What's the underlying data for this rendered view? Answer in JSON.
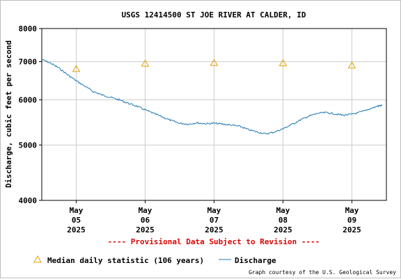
{
  "chart_data": {
    "type": "line",
    "title": "USGS 12414500 ST JOE RIVER AT CALDER, ID",
    "ylabel": "Discharge, cubic feet per second",
    "y_scale": "log",
    "ylim": [
      4000,
      8000
    ],
    "y_ticks": [
      "4000",
      "5000",
      "6000",
      "7000",
      "8000"
    ],
    "xlim": [
      "2025-05-04T12:00",
      "2025-05-09T12:00"
    ],
    "x_ticks": [
      {
        "month": "May",
        "day": "05",
        "year": "2025"
      },
      {
        "month": "May",
        "day": "06",
        "year": "2025"
      },
      {
        "month": "May",
        "day": "07",
        "year": "2025"
      },
      {
        "month": "May",
        "day": "08",
        "year": "2025"
      },
      {
        "month": "May",
        "day": "09",
        "year": "2025"
      }
    ],
    "grid": true,
    "series": [
      {
        "name": "Discharge",
        "color": "#1f77b4",
        "points": [
          [
            "2025-05-04T12:00",
            7060
          ],
          [
            "2025-05-04T15:00",
            6960
          ],
          [
            "2025-05-04T18:00",
            6820
          ],
          [
            "2025-05-04T21:00",
            6640
          ],
          [
            "2025-05-05T00:00",
            6480
          ],
          [
            "2025-05-05T03:00",
            6340
          ],
          [
            "2025-05-05T06:00",
            6200
          ],
          [
            "2025-05-05T09:00",
            6120
          ],
          [
            "2025-05-05T12:00",
            6060
          ],
          [
            "2025-05-05T15:00",
            6000
          ],
          [
            "2025-05-05T18:00",
            5920
          ],
          [
            "2025-05-05T21:00",
            5850
          ],
          [
            "2025-05-06T00:00",
            5760
          ],
          [
            "2025-05-06T03:00",
            5680
          ],
          [
            "2025-05-06T06:00",
            5600
          ],
          [
            "2025-05-06T09:00",
            5520
          ],
          [
            "2025-05-06T12:00",
            5460
          ],
          [
            "2025-05-06T15:00",
            5440
          ],
          [
            "2025-05-06T18:00",
            5470
          ],
          [
            "2025-05-06T21:00",
            5450
          ],
          [
            "2025-05-07T00:00",
            5460
          ],
          [
            "2025-05-07T03:00",
            5440
          ],
          [
            "2025-05-07T06:00",
            5420
          ],
          [
            "2025-05-07T09:00",
            5390
          ],
          [
            "2025-05-07T12:00",
            5320
          ],
          [
            "2025-05-07T15:00",
            5270
          ],
          [
            "2025-05-07T18:00",
            5230
          ],
          [
            "2025-05-07T21:00",
            5270
          ],
          [
            "2025-05-08T00:00",
            5340
          ],
          [
            "2025-05-08T03:00",
            5430
          ],
          [
            "2025-05-08T06:00",
            5530
          ],
          [
            "2025-05-08T09:00",
            5620
          ],
          [
            "2025-05-08T12:00",
            5680
          ],
          [
            "2025-05-08T15:00",
            5700
          ],
          [
            "2025-05-08T18:00",
            5670
          ],
          [
            "2025-05-08T21:00",
            5640
          ],
          [
            "2025-05-09T00:00",
            5660
          ],
          [
            "2025-05-09T03:00",
            5710
          ],
          [
            "2025-05-09T06:00",
            5780
          ],
          [
            "2025-05-09T09:00",
            5850
          ],
          [
            "2025-05-09T10:30",
            5870
          ]
        ]
      },
      {
        "name": "Median daily statistic (106 years)",
        "color": "#e0a000",
        "marker": "triangle",
        "points": [
          [
            "2025-05-05T00:00",
            6800
          ],
          [
            "2025-05-06T00:00",
            6950
          ],
          [
            "2025-05-07T00:00",
            6970
          ],
          [
            "2025-05-08T00:00",
            6960
          ],
          [
            "2025-05-09T00:00",
            6900
          ]
        ]
      }
    ],
    "annotations": [
      "---- Provisional Data Subject to Revision ----"
    ],
    "legend": {
      "placement": "bottom",
      "entries": [
        "Median daily statistic (106 years)",
        "Discharge"
      ]
    },
    "credit": "Graph courtesy of the U.S. Geological Survey"
  }
}
